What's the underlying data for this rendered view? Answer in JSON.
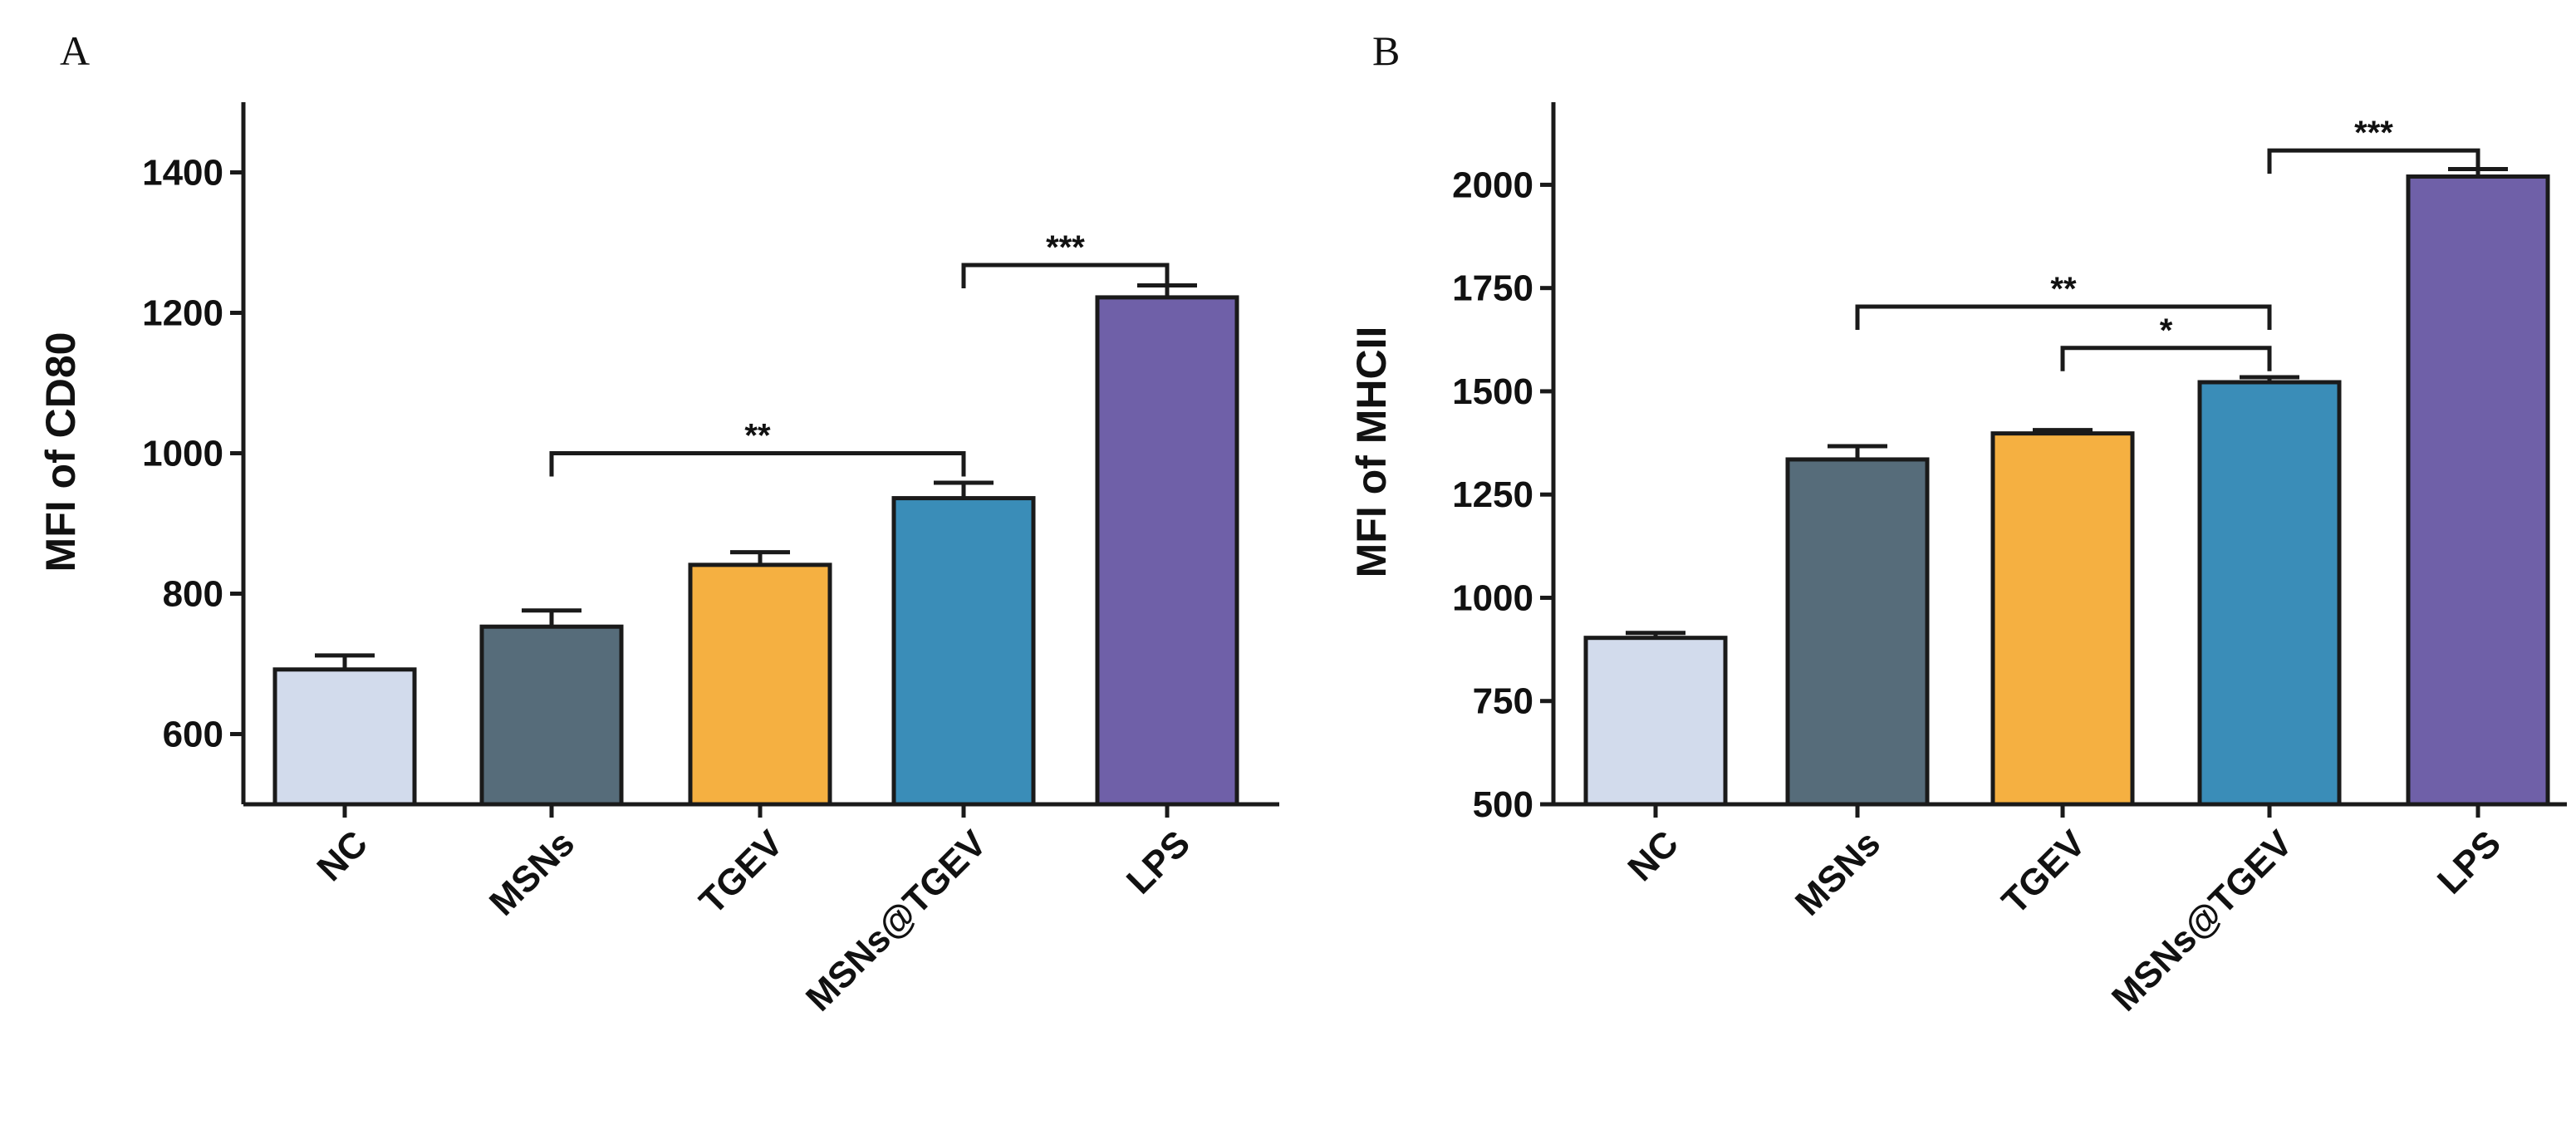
{
  "chart_data": [
    {
      "type": "bar",
      "panel": "A",
      "ylabel": "MFI of CD80",
      "ylim": [
        500,
        1500
      ],
      "yticks": [
        600,
        800,
        1000,
        1200,
        1400
      ],
      "categories": [
        "NC",
        "MSNs",
        "TGEV",
        "MSNs@TGEV",
        "LPS"
      ],
      "values": [
        692,
        753,
        841,
        936,
        1222
      ],
      "errors": [
        20,
        23,
        18,
        22,
        17
      ],
      "colors": [
        "#d2dbec",
        "#566c7a",
        "#f5b041",
        "#3a8db8",
        "#6f60a8"
      ],
      "significance": [
        {
          "from": 1,
          "to": 3,
          "label": "**",
          "y": 1000
        },
        {
          "from": 3,
          "to": 4,
          "label": "***",
          "y": 1268
        }
      ]
    },
    {
      "type": "bar",
      "panel": "B",
      "ylabel": "MFI of MHCII",
      "ylim": [
        500,
        2200
      ],
      "yticks": [
        500,
        750,
        1000,
        1250,
        1500,
        1750,
        2000
      ],
      "categories": [
        "NC",
        "MSNs",
        "TGEV",
        "MSNs@TGEV",
        "LPS"
      ],
      "values": [
        903,
        1335,
        1398,
        1522,
        2020
      ],
      "errors": [
        12,
        32,
        8,
        12,
        18
      ],
      "colors": [
        "#d2dbec",
        "#566c7a",
        "#f5b041",
        "#3a8db8",
        "#6f60a8"
      ],
      "significance": [
        {
          "from": 1,
          "to": 3,
          "label": "**",
          "y": 1705
        },
        {
          "from": 2,
          "to": 3,
          "label": "*",
          "y": 1605
        },
        {
          "from": 3,
          "to": 4,
          "label": "***",
          "y": 2083
        }
      ]
    }
  ]
}
